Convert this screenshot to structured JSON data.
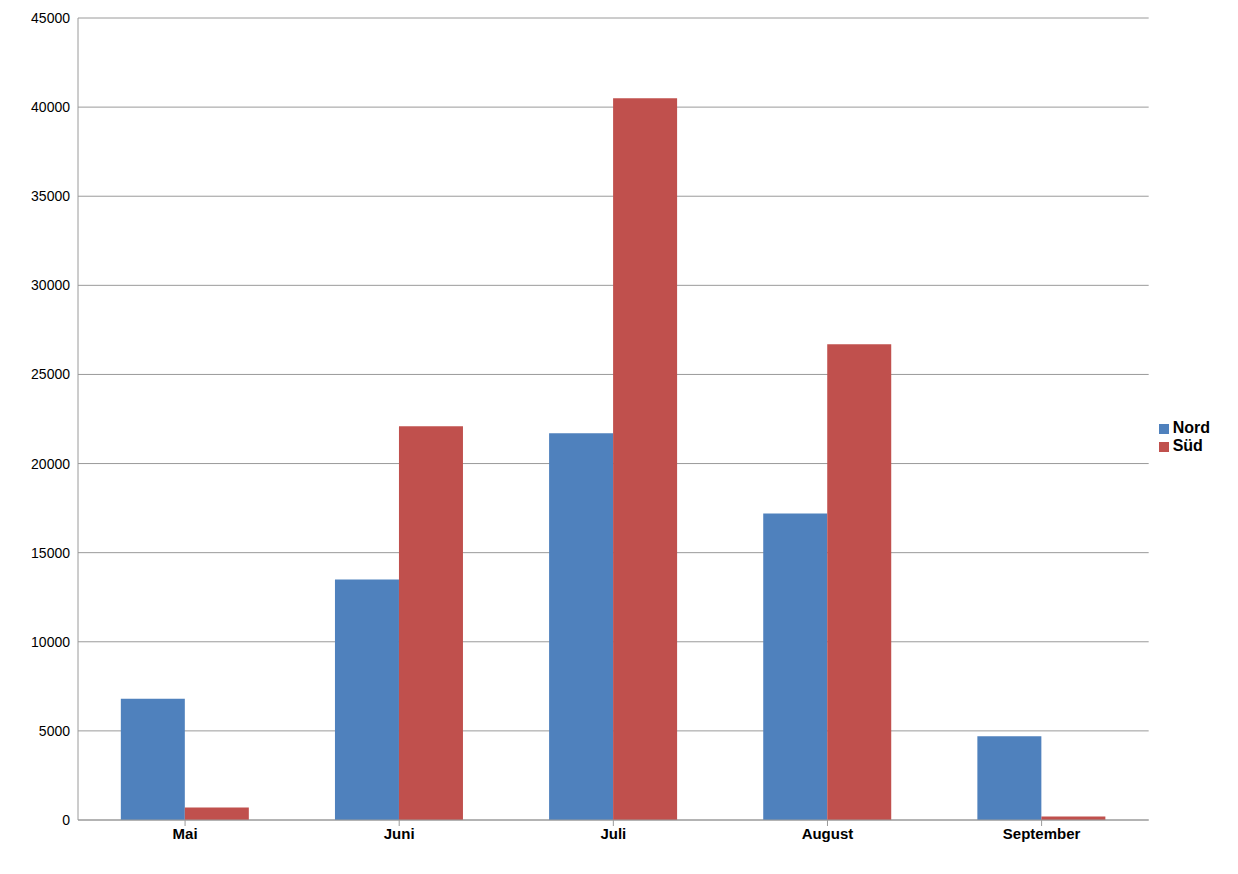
{
  "chart_data": {
    "type": "bar",
    "categories": [
      "Mai",
      "Juni",
      "Juli",
      "August",
      "September"
    ],
    "series": [
      {
        "name": "Nord",
        "color": "#4f81bd",
        "values": [
          6800,
          13500,
          21700,
          17200,
          4700
        ]
      },
      {
        "name": "Süd",
        "color": "#c0504d",
        "values": [
          700,
          22100,
          40500,
          26700,
          200
        ]
      }
    ],
    "ylim": [
      0,
      45000
    ],
    "yticks": [
      0,
      5000,
      10000,
      15000,
      20000,
      25000,
      30000,
      35000,
      40000,
      45000
    ],
    "grid": true,
    "legend": "right"
  }
}
